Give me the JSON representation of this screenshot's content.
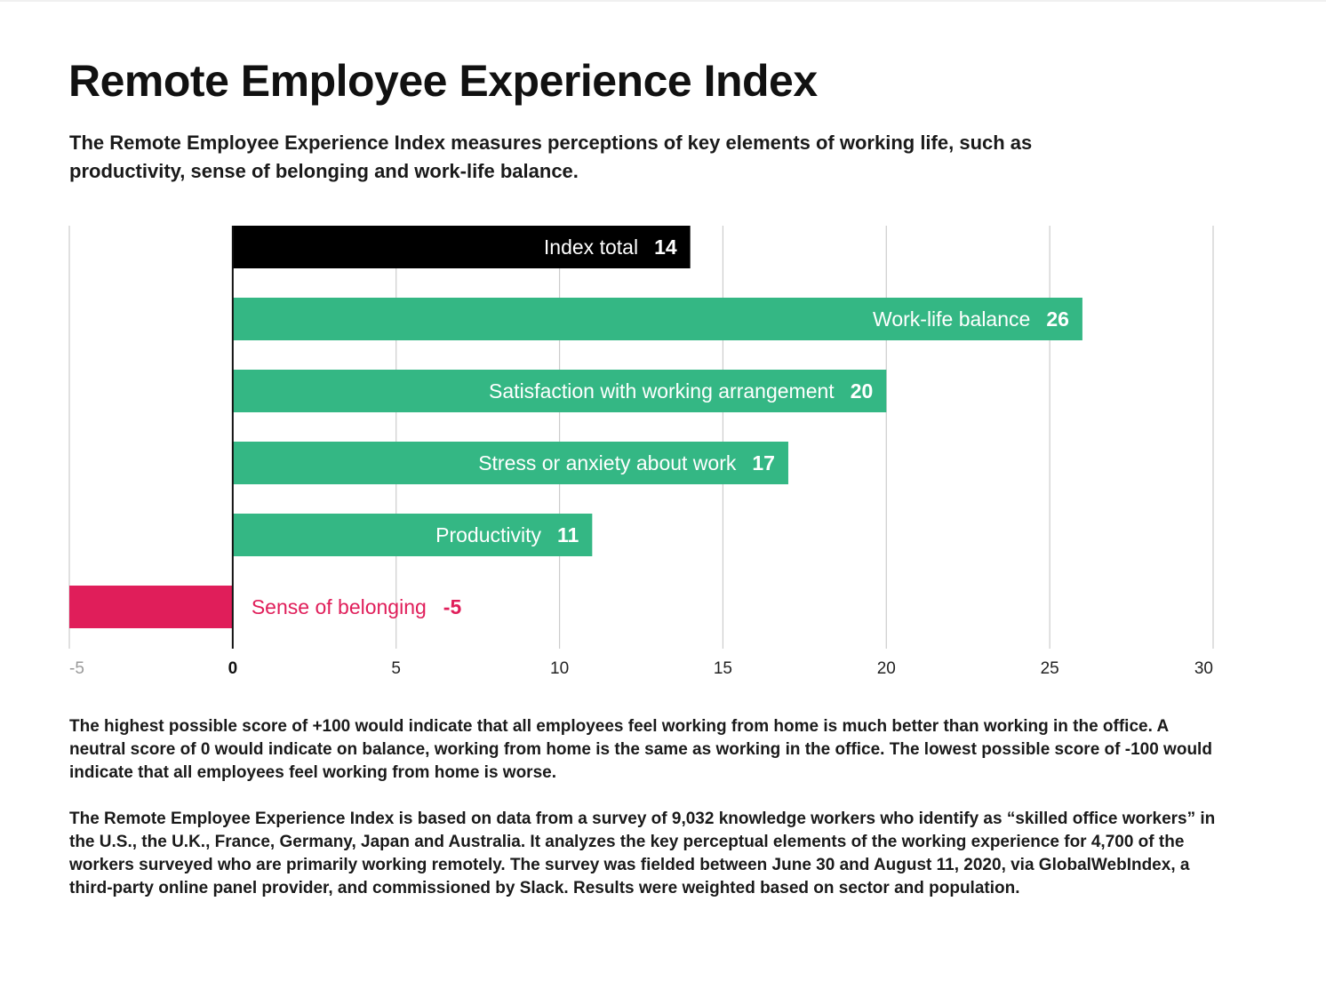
{
  "header": {
    "title": "Remote Employee Experience Index",
    "subtitle": "The Remote Employee Experience Index measures perceptions of key elements of working life, such as productivity, sense of belonging and work-life balance."
  },
  "colors": {
    "total": "#000000",
    "positive": "#34b784",
    "negative": "#e01e5a",
    "grid": "#cccccc",
    "tick_muted": "#9a9a9a",
    "tick_strong": "#111111"
  },
  "chart_data": {
    "type": "bar",
    "orientation": "horizontal",
    "categories": [
      "Index total",
      "Work-life balance",
      "Satisfaction with working arrangement",
      "Stress or anxiety about work",
      "Productivity",
      "Sense of belonging"
    ],
    "values": [
      14,
      26,
      20,
      17,
      11,
      -5
    ],
    "value_labels": [
      "14",
      "26",
      "20",
      "17",
      "11",
      "-5"
    ],
    "bar_roles": [
      "total",
      "positive",
      "positive",
      "positive",
      "positive",
      "negative"
    ],
    "xlim": [
      -5,
      30
    ],
    "xticks": [
      -5,
      0,
      5,
      10,
      15,
      20,
      25,
      30
    ],
    "xtick_labels": [
      "-5",
      "0",
      "5",
      "10",
      "15",
      "20",
      "25",
      "30"
    ],
    "zero_tick_emphasized": true,
    "grid": true,
    "title": "Remote Employee Experience Index",
    "xlabel": "",
    "ylabel": ""
  },
  "notes": {
    "scale_explanation": "The highest possible score of +100 would indicate that all employees feel working from home is much better than working in the office. A neutral score of 0 would indicate on balance, working from home is the same as working in the office. The lowest possible score of -100 would indicate that all employees feel working from home is worse.",
    "methodology": "The Remote Employee Experience Index is based on data from a survey of 9,032 knowledge workers who identify as “skilled office workers” in the U.S., the U.K., France, Germany, Japan and Australia. It analyzes the key perceptual elements of the working experience for 4,700 of the workers surveyed who are primarily working remotely. The survey was fielded between June 30 and August 11, 2020, via GlobalWebIndex, a third-party online panel provider, and commissioned by Slack. Results were weighted based on sector and population."
  }
}
